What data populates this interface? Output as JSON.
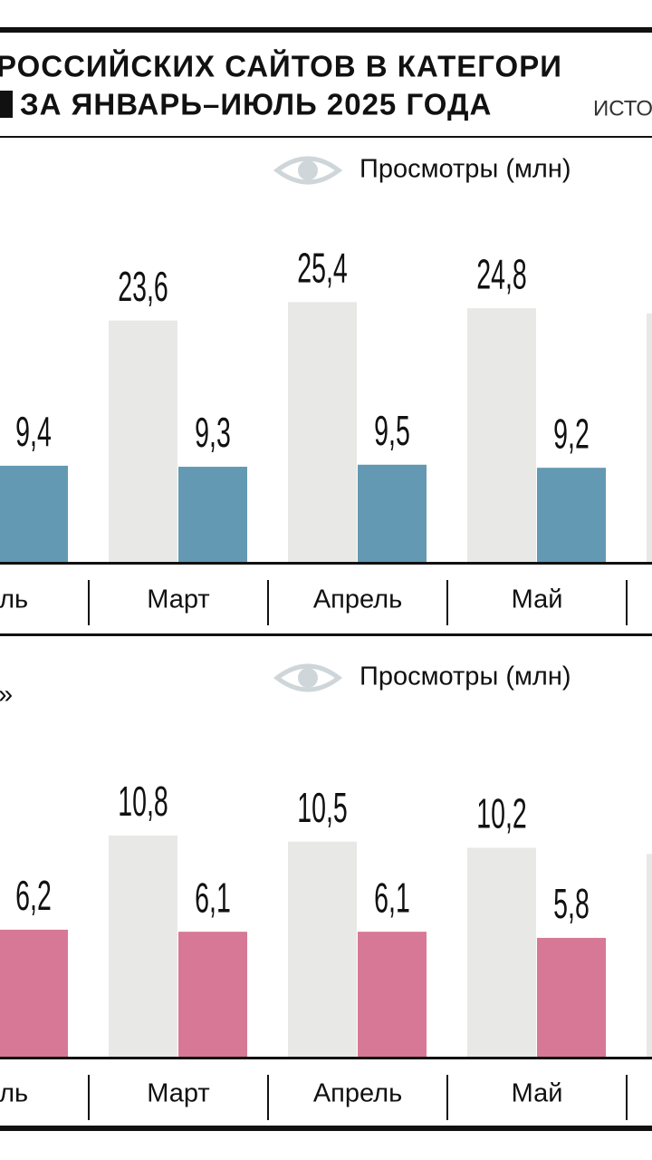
{
  "header": {
    "title_lines": [
      "РОССИЙСКИХ САЙТОВ В КАТЕГОРИ",
      "ЗА ЯНВАРЬ–ИЮЛЬ 2025 ГОДА"
    ],
    "source": "ИСТО"
  },
  "chart_data": [
    {
      "type": "bar",
      "categories": [
        "раль",
        "Март",
        "Апрель",
        "Май",
        null
      ],
      "ylim": [
        0,
        35
      ],
      "series": [
        {
          "name": "Просмотры (млн)",
          "color": "#e8e8e6",
          "values": [
            null,
            23.6,
            25.4,
            24.8,
            24.3
          ],
          "value_labels": [
            null,
            "23,6",
            "25,4",
            "24,8",
            null
          ]
        },
        {
          "color": "#6399b2",
          "values": [
            9.4,
            9.3,
            9.5,
            9.2,
            null
          ],
          "value_labels": [
            "9,4",
            "9,3",
            "9,5",
            "9,2",
            null
          ]
        }
      ]
    },
    {
      "type": "bar",
      "annotation": "»",
      "categories": [
        "раль",
        "Март",
        "Апрель",
        "Май",
        null
      ],
      "ylim": [
        0,
        15
      ],
      "series": [
        {
          "name": "Просмотры (млн)",
          "color": "#e8e8e6",
          "values": [
            null,
            10.8,
            10.5,
            10.2,
            9.9
          ],
          "value_labels": [
            null,
            "10,8",
            "10,5",
            "10,2",
            null
          ]
        },
        {
          "color": "#d67896",
          "values": [
            6.2,
            6.1,
            6.1,
            5.8,
            null
          ],
          "value_labels": [
            "6,2",
            "6,1",
            "6,1",
            "5,8",
            null
          ]
        }
      ]
    }
  ]
}
